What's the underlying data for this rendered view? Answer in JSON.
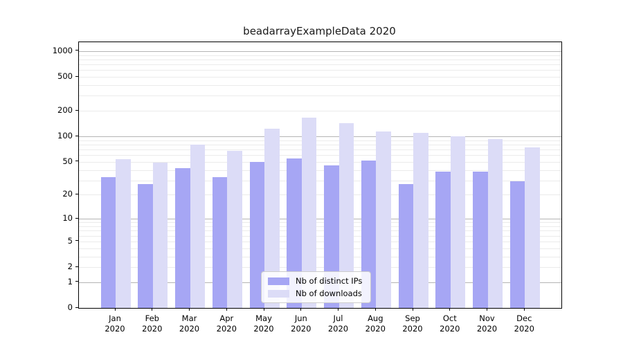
{
  "chart_data": {
    "type": "bar",
    "title": "beadarrayExampleData 2020",
    "categories": [
      "Jan",
      "Feb",
      "Mar",
      "Apr",
      "May",
      "Jun",
      "Jul",
      "Aug",
      "Sep",
      "Oct",
      "Nov",
      "Dec"
    ],
    "year_label": "2020",
    "series": [
      {
        "name": "Nb of distinct IPs",
        "color": "#a6a6f4",
        "values": [
          33,
          27,
          42,
          33,
          50,
          55,
          45,
          52,
          27,
          38,
          38,
          29
        ]
      },
      {
        "name": "Nb of downloads",
        "color": "#dcdcf7",
        "values": [
          54,
          49,
          80,
          67,
          124,
          165,
          143,
          114,
          110,
          101,
          93,
          74
        ]
      }
    ],
    "yscale": "log1p",
    "yticks": [
      0,
      1,
      2,
      5,
      10,
      20,
      50,
      100,
      200,
      500,
      1000
    ],
    "ylim": [
      0,
      1270
    ],
    "xlabel": "",
    "ylabel": "",
    "grid": "horizontal",
    "legend_position": "lower-center-inside"
  },
  "colors": {
    "background": "#ffffff",
    "major_grid": "#b4b4b4",
    "minor_grid": "#ebebeb",
    "spine": "#000000",
    "legend_border": "#cccccc"
  }
}
